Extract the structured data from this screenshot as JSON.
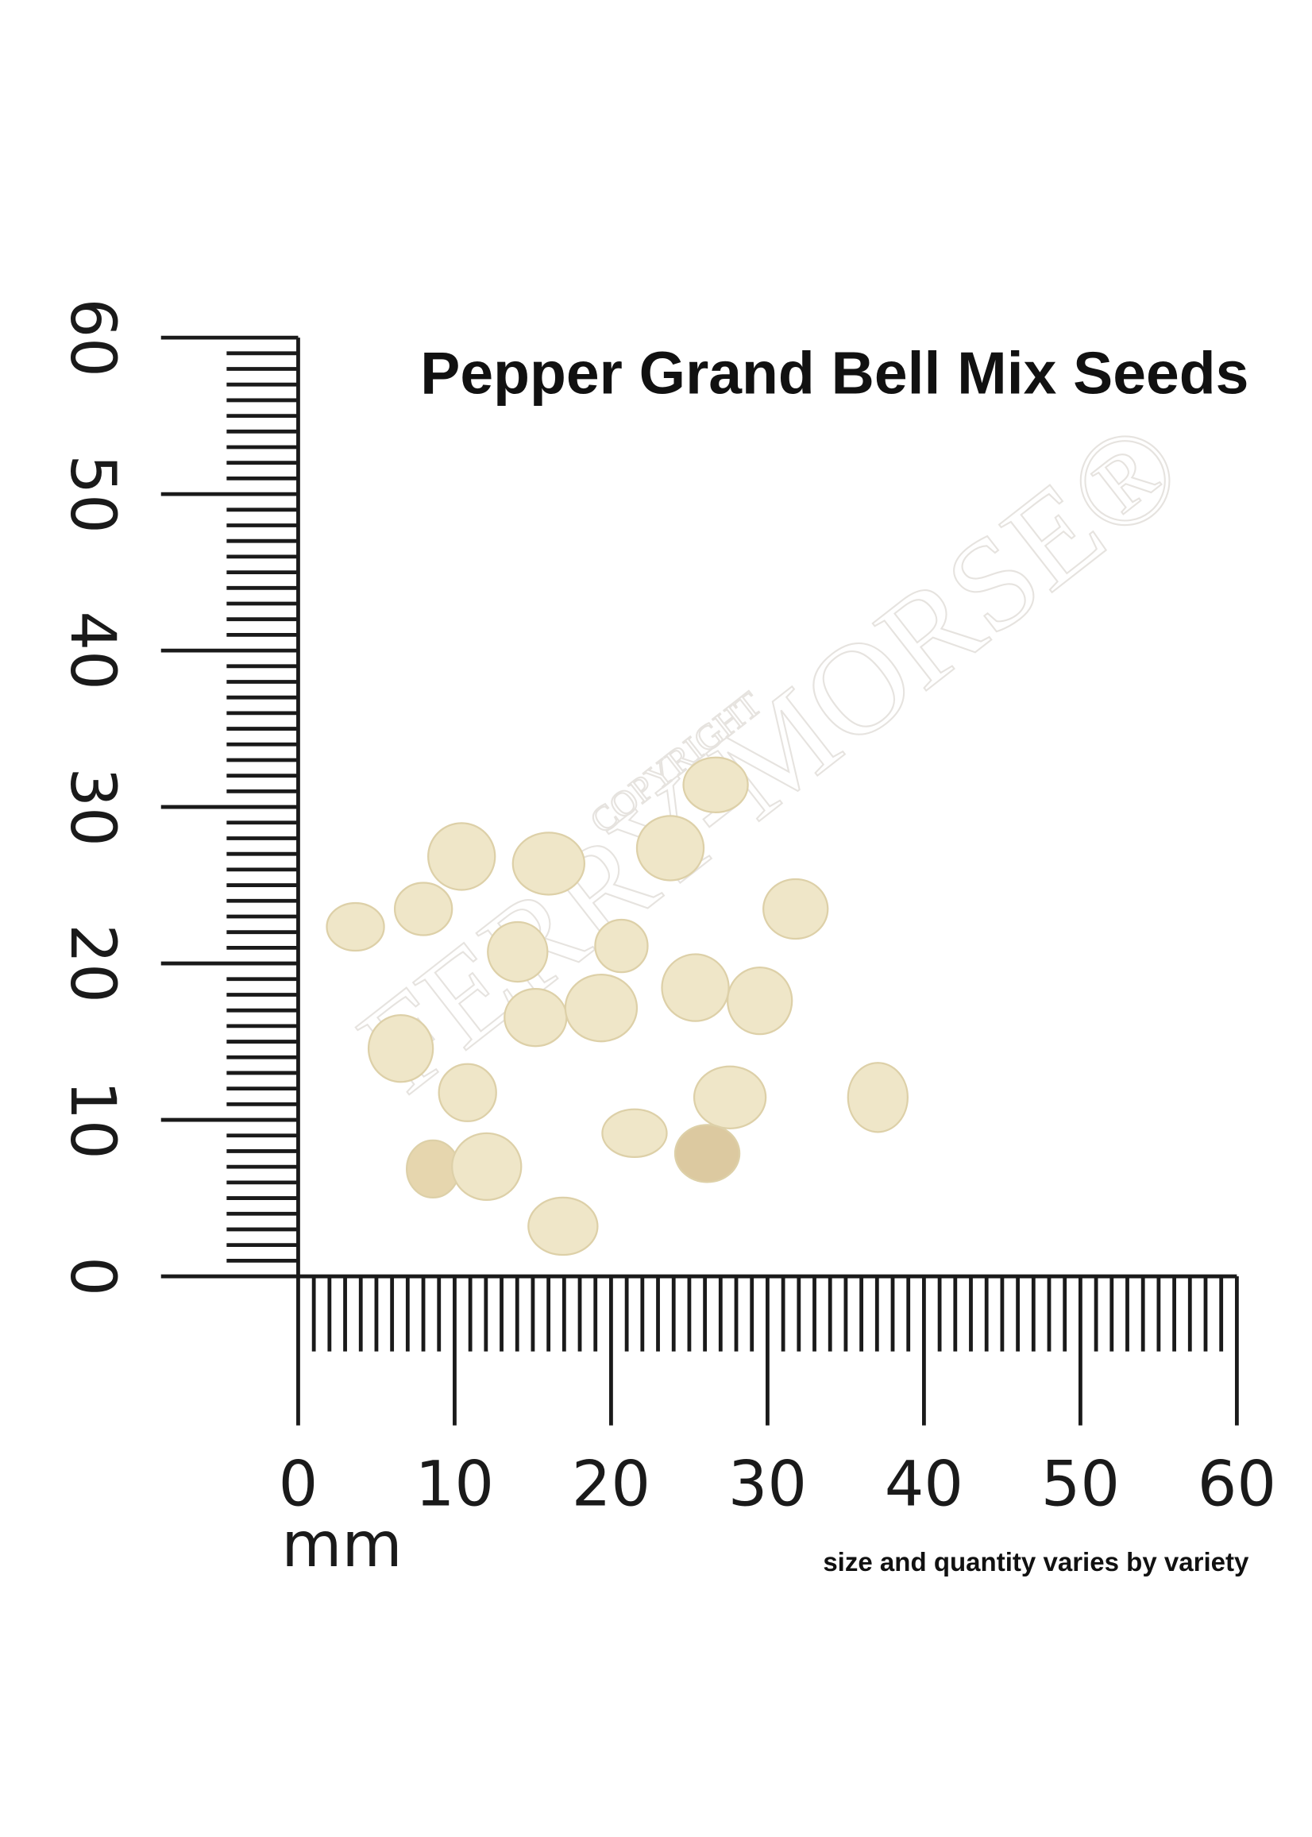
{
  "title": "Pepper Grand Bell Mix Seeds",
  "ruler": {
    "unit": "mm",
    "x_labels": [
      0,
      10,
      20,
      30,
      40,
      50,
      60
    ],
    "y_labels": [
      0,
      10,
      20,
      30,
      40,
      50,
      60
    ]
  },
  "note": "size and quantity varies by variety",
  "watermark": {
    "top": "COPYRIGHT",
    "main": "FERRY-MORSE®"
  }
}
